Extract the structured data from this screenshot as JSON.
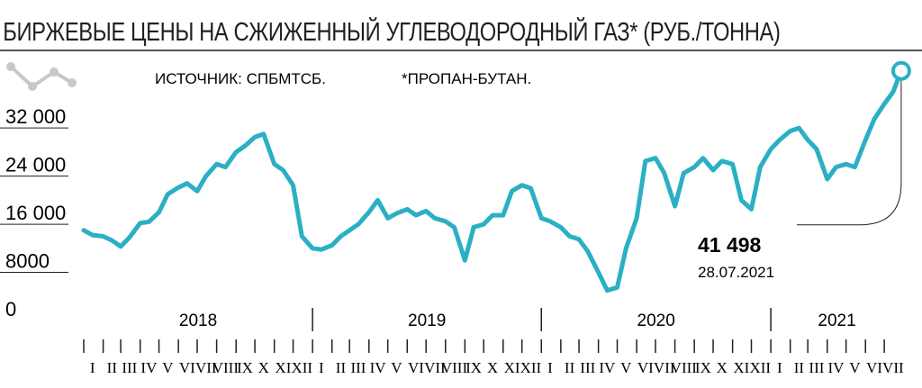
{
  "chart_data": {
    "type": "line",
    "title": "БИРЖЕВЫЕ ЦЕНЫ НА СЖИЖЕННЫЙ УГЛЕВОДОРОДНЫЙ ГАЗ* (РУБ./ТОННА)",
    "source": "ИСТОЧНИК: СПБМТСБ.",
    "footnote": "*ПРОПАН-БУТАН.",
    "ylim": [
      0,
      44000
    ],
    "yticks": [
      {
        "value": 32000,
        "label": "32 000"
      },
      {
        "value": 24000,
        "label": "24 000"
      },
      {
        "value": 16000,
        "label": "16 000"
      },
      {
        "value": 8000,
        "label": "8000"
      },
      {
        "value": 0,
        "label": "0"
      }
    ],
    "years": [
      "2018",
      "2019",
      "2020",
      "2021"
    ],
    "month_labels": [
      "I",
      "II",
      "III",
      "IV",
      "V",
      "VI",
      "VII",
      "VIII",
      "IX",
      "X",
      "XI",
      "XII",
      "I",
      "II",
      "III",
      "IV",
      "V",
      "VI",
      "VII",
      "VIII",
      "IX",
      "X",
      "XI",
      "XII",
      "I",
      "II",
      "III",
      "IV",
      "V",
      "VI",
      "VII",
      "VIII",
      "IX",
      "X",
      "XI",
      "XII",
      "I",
      "II",
      "III",
      "IV",
      "V",
      "VI",
      "VII"
    ],
    "series": [
      {
        "color": "#2ab0c4",
        "points": [
          [
            "2018-01-01",
            15000
          ],
          [
            "2018-01-15",
            14200
          ],
          [
            "2018-02-01",
            14000
          ],
          [
            "2018-02-15",
            13300
          ],
          [
            "2018-03-01",
            12300
          ],
          [
            "2018-03-15",
            13800
          ],
          [
            "2018-04-01",
            16200
          ],
          [
            "2018-04-15",
            16400
          ],
          [
            "2018-05-01",
            18000
          ],
          [
            "2018-05-15",
            21000
          ],
          [
            "2018-06-01",
            22100
          ],
          [
            "2018-06-15",
            22800
          ],
          [
            "2018-07-01",
            21500
          ],
          [
            "2018-07-15",
            24000
          ],
          [
            "2018-08-01",
            26000
          ],
          [
            "2018-08-15",
            25500
          ],
          [
            "2018-09-01",
            28000
          ],
          [
            "2018-09-15",
            29000
          ],
          [
            "2018-10-01",
            30500
          ],
          [
            "2018-10-15",
            31000
          ],
          [
            "2018-11-01",
            26000
          ],
          [
            "2018-11-15",
            25000
          ],
          [
            "2018-12-01",
            22500
          ],
          [
            "2018-12-15",
            14000
          ],
          [
            "2019-01-01",
            12000
          ],
          [
            "2019-01-15",
            11800
          ],
          [
            "2019-02-01",
            12500
          ],
          [
            "2019-02-15",
            14000
          ],
          [
            "2019-03-01",
            15000
          ],
          [
            "2019-03-15",
            16000
          ],
          [
            "2019-04-01",
            18000
          ],
          [
            "2019-04-15",
            20000
          ],
          [
            "2019-05-01",
            17000
          ],
          [
            "2019-05-15",
            17800
          ],
          [
            "2019-06-01",
            18500
          ],
          [
            "2019-06-15",
            17500
          ],
          [
            "2019-07-01",
            18200
          ],
          [
            "2019-07-15",
            17000
          ],
          [
            "2019-08-01",
            16500
          ],
          [
            "2019-08-15",
            15500
          ],
          [
            "2019-09-01",
            10000
          ],
          [
            "2019-09-15",
            15500
          ],
          [
            "2019-10-01",
            16000
          ],
          [
            "2019-10-15",
            17500
          ],
          [
            "2019-11-01",
            17500
          ],
          [
            "2019-11-15",
            21500
          ],
          [
            "2019-12-01",
            22500
          ],
          [
            "2019-12-15",
            22000
          ],
          [
            "2020-01-01",
            17000
          ],
          [
            "2020-01-15",
            16500
          ],
          [
            "2020-02-01",
            15500
          ],
          [
            "2020-02-15",
            14000
          ],
          [
            "2020-03-01",
            13500
          ],
          [
            "2020-03-15",
            11500
          ],
          [
            "2020-04-01",
            8000
          ],
          [
            "2020-04-15",
            5000
          ],
          [
            "2020-05-01",
            5500
          ],
          [
            "2020-05-15",
            12000
          ],
          [
            "2020-06-01",
            17000
          ],
          [
            "2020-06-15",
            26500
          ],
          [
            "2020-07-01",
            27000
          ],
          [
            "2020-07-15",
            24500
          ],
          [
            "2020-08-01",
            19000
          ],
          [
            "2020-08-15",
            24500
          ],
          [
            "2020-09-01",
            25500
          ],
          [
            "2020-09-15",
            27000
          ],
          [
            "2020-10-01",
            25000
          ],
          [
            "2020-10-15",
            26500
          ],
          [
            "2020-11-01",
            26000
          ],
          [
            "2020-11-15",
            20000
          ],
          [
            "2020-12-01",
            18500
          ],
          [
            "2020-12-15",
            25500
          ],
          [
            "2021-01-01",
            28500
          ],
          [
            "2021-01-15",
            30000
          ],
          [
            "2021-02-01",
            31500
          ],
          [
            "2021-02-15",
            32000
          ],
          [
            "2021-03-01",
            30000
          ],
          [
            "2021-03-15",
            28500
          ],
          [
            "2021-04-01",
            23500
          ],
          [
            "2021-04-15",
            25500
          ],
          [
            "2021-05-01",
            26000
          ],
          [
            "2021-05-15",
            25500
          ],
          [
            "2021-06-01",
            30000
          ],
          [
            "2021-06-15",
            33500
          ],
          [
            "2021-07-01",
            36000
          ],
          [
            "2021-07-15",
            38000
          ],
          [
            "2021-07-28",
            41498
          ]
        ]
      }
    ],
    "callout": {
      "value": "41 498",
      "date": "28.07.2021"
    },
    "grid": false
  }
}
